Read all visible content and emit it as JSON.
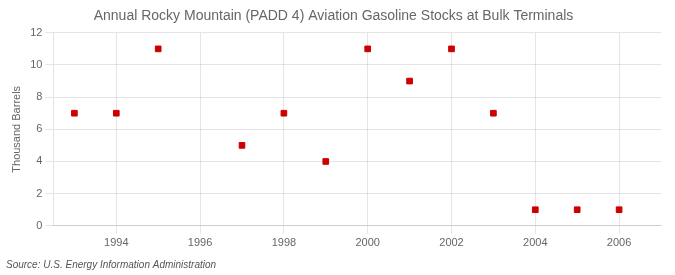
{
  "chart_data": {
    "type": "scatter",
    "title": "Annual Rocky Mountain (PADD 4) Aviation Gasoline Stocks at Bulk Terminals",
    "y_label": "Thousand Barrels",
    "source": "Source: U.S. Energy Information Administration",
    "x": [
      1993,
      1994,
      1995,
      1997,
      1998,
      1999,
      2000,
      2001,
      2002,
      2003,
      2004,
      2005,
      2006
    ],
    "values": [
      7,
      7,
      11,
      5,
      7,
      4,
      11,
      9,
      11,
      7,
      1,
      1,
      1
    ],
    "color": "#cc0000",
    "marker": "square",
    "xlim": [
      1992.5,
      2007
    ],
    "xticks": [
      1994,
      1996,
      1998,
      2000,
      2002,
      2004,
      2006
    ],
    "ylim": [
      0,
      12
    ],
    "yticks": [
      0,
      2,
      4,
      6,
      8,
      10,
      12
    ],
    "grid": true
  }
}
